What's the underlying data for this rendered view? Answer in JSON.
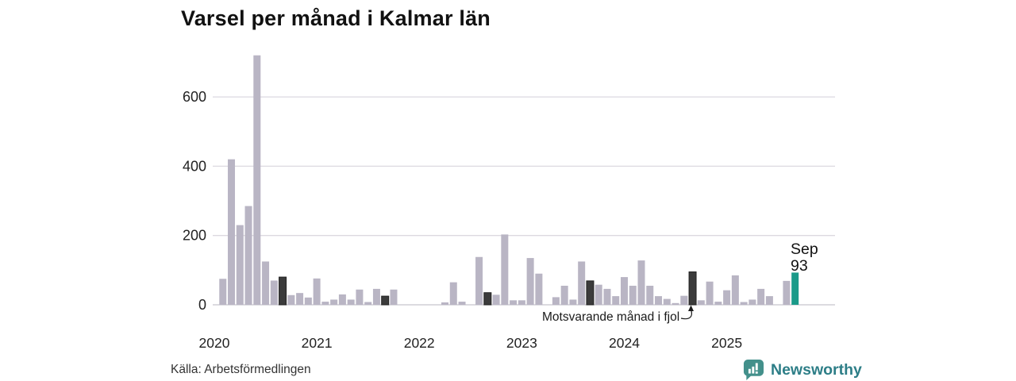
{
  "title": "Varsel per månad i Kalmar län",
  "source": "Källa: Arbetsförmedlingen",
  "branding": {
    "name": "Newsworthy"
  },
  "annotations": {
    "prev_year_label": "Motsvarande månad i fjol",
    "current_point": {
      "month": "Sep",
      "value": "93"
    }
  },
  "colors": {
    "bar": "#b9b5c4",
    "bar_prev_year_sep": "#3b3b3b",
    "bar_current": "#1b9a89",
    "grid": "#dcd9e0",
    "axis_line": "#c8c5cd",
    "text": "#1a1a1a",
    "tick_text": "#222222",
    "brand_icon": "#43908b",
    "brand_text": "#2d7e87"
  },
  "chart_data": {
    "type": "bar",
    "title": "Varsel per månad i Kalmar län",
    "xlabel": "",
    "ylabel": "",
    "ylim": [
      0,
      730
    ],
    "yticks": [
      0,
      200,
      400,
      600
    ],
    "year_ticks": [
      "2020",
      "2021",
      "2022",
      "2023",
      "2024",
      "2025"
    ],
    "grid": "horizontal",
    "legend": "none",
    "highlight_rule": "dark bars = September each year; teal bar = latest month (Sep 2025)",
    "months": [
      {
        "m": "2020-02",
        "v": 75
      },
      {
        "m": "2020-03",
        "v": 420
      },
      {
        "m": "2020-04",
        "v": 230
      },
      {
        "m": "2020-05",
        "v": 285
      },
      {
        "m": "2020-06",
        "v": 720
      },
      {
        "m": "2020-07",
        "v": 125
      },
      {
        "m": "2020-08",
        "v": 70
      },
      {
        "m": "2020-09",
        "v": 80,
        "k": "fjol"
      },
      {
        "m": "2020-10",
        "v": 28
      },
      {
        "m": "2020-11",
        "v": 34
      },
      {
        "m": "2020-12",
        "v": 21
      },
      {
        "m": "2021-01",
        "v": 76
      },
      {
        "m": "2021-02",
        "v": 9
      },
      {
        "m": "2021-03",
        "v": 15
      },
      {
        "m": "2021-04",
        "v": 30
      },
      {
        "m": "2021-05",
        "v": 15
      },
      {
        "m": "2021-06",
        "v": 44
      },
      {
        "m": "2021-07",
        "v": 8
      },
      {
        "m": "2021-08",
        "v": 46
      },
      {
        "m": "2021-09",
        "v": 25,
        "k": "fjol"
      },
      {
        "m": "2021-10",
        "v": 44
      },
      {
        "m": "2021-11",
        "v": 0
      },
      {
        "m": "2021-12",
        "v": 0
      },
      {
        "m": "2022-01",
        "v": 0
      },
      {
        "m": "2022-02",
        "v": 0
      },
      {
        "m": "2022-03",
        "v": 0
      },
      {
        "m": "2022-04",
        "v": 7
      },
      {
        "m": "2022-05",
        "v": 65
      },
      {
        "m": "2022-06",
        "v": 9
      },
      {
        "m": "2022-07",
        "v": 0
      },
      {
        "m": "2022-08",
        "v": 138
      },
      {
        "m": "2022-09",
        "v": 35,
        "k": "fjol"
      },
      {
        "m": "2022-10",
        "v": 29
      },
      {
        "m": "2022-11",
        "v": 203
      },
      {
        "m": "2022-12",
        "v": 13
      },
      {
        "m": "2023-01",
        "v": 13
      },
      {
        "m": "2023-02",
        "v": 135
      },
      {
        "m": "2023-03",
        "v": 90
      },
      {
        "m": "2023-04",
        "v": 0
      },
      {
        "m": "2023-05",
        "v": 22
      },
      {
        "m": "2023-06",
        "v": 55
      },
      {
        "m": "2023-07",
        "v": 15
      },
      {
        "m": "2023-08",
        "v": 125
      },
      {
        "m": "2023-09",
        "v": 69,
        "k": "fjol"
      },
      {
        "m": "2023-10",
        "v": 58
      },
      {
        "m": "2023-11",
        "v": 46
      },
      {
        "m": "2023-12",
        "v": 25
      },
      {
        "m": "2024-01",
        "v": 80
      },
      {
        "m": "2024-02",
        "v": 55
      },
      {
        "m": "2024-03",
        "v": 128
      },
      {
        "m": "2024-04",
        "v": 55
      },
      {
        "m": "2024-05",
        "v": 25
      },
      {
        "m": "2024-06",
        "v": 17
      },
      {
        "m": "2024-07",
        "v": 5
      },
      {
        "m": "2024-08",
        "v": 26
      },
      {
        "m": "2024-09",
        "v": 95,
        "k": "fjol"
      },
      {
        "m": "2024-10",
        "v": 13
      },
      {
        "m": "2024-11",
        "v": 67
      },
      {
        "m": "2024-12",
        "v": 9
      },
      {
        "m": "2025-01",
        "v": 42
      },
      {
        "m": "2025-02",
        "v": 85
      },
      {
        "m": "2025-03",
        "v": 8
      },
      {
        "m": "2025-04",
        "v": 15
      },
      {
        "m": "2025-05",
        "v": 46
      },
      {
        "m": "2025-06",
        "v": 25
      },
      {
        "m": "2025-07",
        "v": 0
      },
      {
        "m": "2025-08",
        "v": 69
      },
      {
        "m": "2025-09",
        "v": 93,
        "k": "aktuell"
      }
    ]
  }
}
